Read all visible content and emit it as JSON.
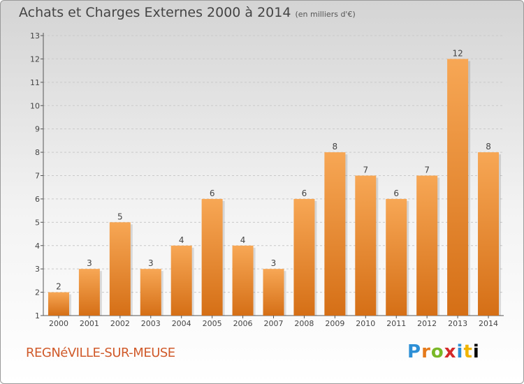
{
  "header": {
    "title": "Achats et Charges Externes 2000 à 2014",
    "subtitle": "(en milliers d'€)"
  },
  "footer": {
    "commune": "REGNéVILLE-SUR-MEUSE",
    "logo_letters": [
      "P",
      "r",
      "o",
      "x",
      "i",
      "t",
      "i"
    ]
  },
  "chart_data": {
    "type": "bar",
    "title": "Achats et Charges Externes 2000 à 2014",
    "subtitle": "(en milliers d'€)",
    "xlabel": "",
    "ylabel": "",
    "categories": [
      "2000",
      "2001",
      "2002",
      "2003",
      "2004",
      "2005",
      "2006",
      "2007",
      "2008",
      "2009",
      "2010",
      "2011",
      "2012",
      "2013",
      "2014"
    ],
    "values": [
      2,
      3,
      5,
      3,
      4,
      6,
      4,
      3,
      6,
      8,
      7,
      6,
      7,
      12,
      8
    ],
    "ylim": [
      1,
      13
    ],
    "yticks": [
      1,
      2,
      3,
      4,
      5,
      6,
      7,
      8,
      9,
      10,
      11,
      12,
      13
    ],
    "grid": true,
    "bar_color_top": "#f7a755",
    "bar_color_bottom": "#d56f16"
  }
}
